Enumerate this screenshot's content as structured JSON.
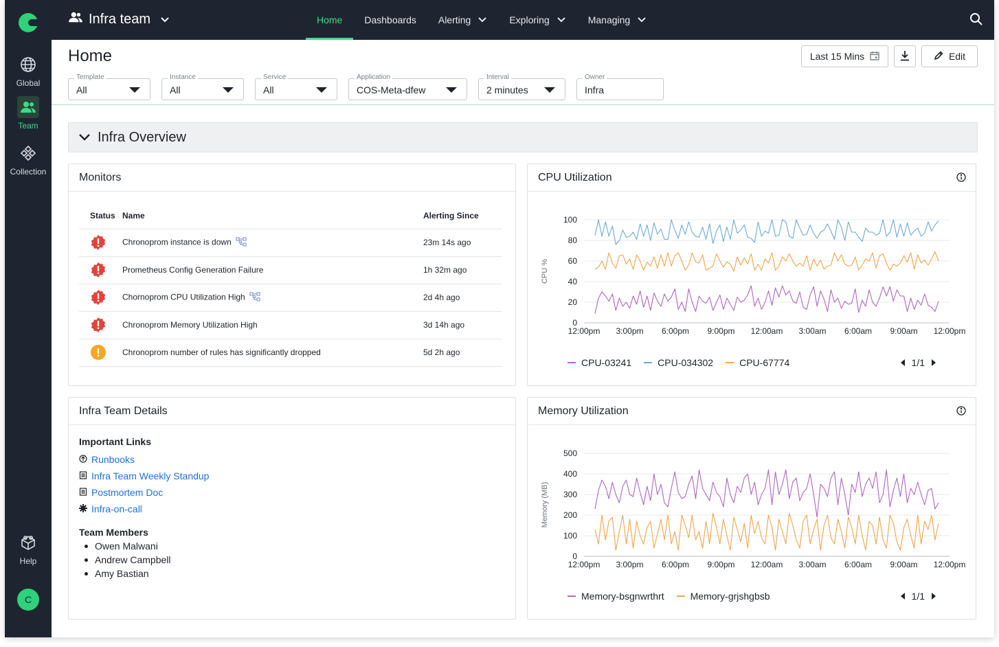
{
  "app": {
    "team_name": "Infra team",
    "nav_tabs": [
      {
        "label": "Home",
        "active": true,
        "dropdown": false
      },
      {
        "label": "Dashboards",
        "active": false,
        "dropdown": false
      },
      {
        "label": "Alerting",
        "active": false,
        "dropdown": true
      },
      {
        "label": "Exploring",
        "active": false,
        "dropdown": true
      },
      {
        "label": "Managing",
        "active": false,
        "dropdown": true
      }
    ],
    "brand_color": "#3ddc84"
  },
  "sidebar": {
    "items": [
      {
        "label": "Global",
        "icon": "globe-icon",
        "active": false
      },
      {
        "label": "Team",
        "icon": "team-icon",
        "active": true
      },
      {
        "label": "Collection",
        "icon": "collection-icon",
        "active": false
      }
    ],
    "help_label": "Help",
    "avatar_initial": "C"
  },
  "header": {
    "title": "Home",
    "time_range": "Last 15 Mins",
    "edit_label": "Edit"
  },
  "filters": [
    {
      "label": "Template",
      "value": "All",
      "dropdown": true
    },
    {
      "label": "Instance",
      "value": "All",
      "dropdown": true
    },
    {
      "label": "Service",
      "value": "All",
      "dropdown": true
    },
    {
      "label": "Application",
      "value": "COS-Meta-dfew",
      "dropdown": true
    },
    {
      "label": "Interval",
      "value": "2 minutes",
      "dropdown": true
    },
    {
      "label": "Owner",
      "value": "Infra",
      "dropdown": false
    }
  ],
  "section": {
    "title": "Infra Overview"
  },
  "monitors": {
    "title": "Monitors",
    "columns": [
      "Status",
      "Name",
      "Alerting Since"
    ],
    "rows": [
      {
        "severity": "critical",
        "name": "Chronoprom instance is down",
        "linked": true,
        "since": "23m 14s ago"
      },
      {
        "severity": "critical",
        "name": "Prometheus Config Generation Failure",
        "linked": false,
        "since": "1h 32m ago"
      },
      {
        "severity": "critical",
        "name": "Chornoprom CPU Utilization High",
        "linked": true,
        "since": "2d 4h ago"
      },
      {
        "severity": "critical",
        "name": "Chronoprom Memory Utilization High",
        "linked": false,
        "since": "3d 14h ago"
      },
      {
        "severity": "warning",
        "name": "Chronoprom number of rules has significantly dropped",
        "linked": false,
        "since": "5d 2h ago"
      }
    ],
    "colors": {
      "critical": "#e5423b",
      "warning": "#f6a623"
    }
  },
  "details": {
    "title": "Infra Team Details",
    "links_heading": "Important Links",
    "links": [
      {
        "label": "Runbooks",
        "icon": "runbook-icon"
      },
      {
        "label": "Infra Team Weekly Standup",
        "icon": "document-icon"
      },
      {
        "label": "Postmortem Doc",
        "icon": "document-icon"
      },
      {
        "label": "Infra-on-call",
        "icon": "oncall-icon"
      }
    ],
    "members_heading": "Team Members",
    "members": [
      "Owen Malwani",
      "Andrew Campbell",
      "Amy Bastian"
    ]
  },
  "chart_data": [
    {
      "type": "line",
      "title": "CPU Utilization",
      "ylabel": "CPU %",
      "ylim": [
        0,
        100
      ],
      "yticks": [
        0,
        20,
        40,
        60,
        80,
        100
      ],
      "xticks": [
        "12:00pm",
        "3:00pm",
        "6:00pm",
        "9:00pm",
        "12:00am",
        "3:00am",
        "6:00am",
        "9:00am",
        "12:00pm"
      ],
      "grid": true,
      "pager": "1/1",
      "series": [
        {
          "name": "CPU-03241",
          "color": "#b065c2",
          "values": [
            9,
            24,
            30,
            26,
            21,
            28,
            12,
            24,
            16,
            20,
            14,
            26,
            18,
            31,
            15,
            26,
            12,
            29,
            21,
            16,
            28,
            21,
            25,
            33,
            13,
            20,
            11,
            33,
            20,
            11,
            26,
            21,
            19,
            25,
            12,
            20,
            27,
            13,
            24,
            18,
            12,
            25,
            20,
            22,
            27,
            36,
            16,
            24,
            13,
            20,
            31,
            17,
            34,
            25,
            36,
            27,
            31,
            21,
            19,
            30,
            15,
            13,
            27,
            35,
            16,
            31,
            23,
            11,
            32,
            20,
            24,
            14,
            21,
            18,
            19,
            33,
            10,
            22,
            16,
            32,
            20,
            16,
            24,
            35,
            26,
            35,
            21,
            32,
            26,
            26,
            11,
            24,
            13,
            22,
            17,
            28,
            17,
            15,
            11,
            21
          ]
        },
        {
          "name": "CPU-034302",
          "color": "#6ea8d7",
          "values": [
            85,
            100,
            84,
            98,
            84,
            94,
            76,
            80,
            90,
            83,
            84,
            88,
            81,
            96,
            84,
            95,
            80,
            97,
            86,
            91,
            81,
            81,
            100,
            90,
            82,
            95,
            86,
            98,
            88,
            84,
            83,
            93,
            81,
            96,
            77,
            89,
            95,
            79,
            93,
            81,
            100,
            87,
            90,
            95,
            83,
            82,
            78,
            98,
            84,
            89,
            87,
            100,
            84,
            85,
            100,
            98,
            84,
            82,
            100,
            92,
            85,
            86,
            95,
            87,
            82,
            88,
            90,
            96,
            89,
            81,
            100,
            93,
            80,
            98,
            88,
            88,
            83,
            79,
            92,
            88,
            88,
            85,
            87,
            100,
            84,
            88,
            100,
            83,
            96,
            84,
            97,
            85,
            89,
            92,
            84,
            87,
            98,
            89,
            95,
            99
          ]
        },
        {
          "name": "CPU-67774",
          "color": "#f1a44a",
          "values": [
            52,
            54,
            60,
            52,
            68,
            58,
            53,
            65,
            66,
            57,
            62,
            52,
            66,
            60,
            51,
            59,
            55,
            64,
            53,
            66,
            55,
            68,
            55,
            65,
            68,
            60,
            51,
            56,
            68,
            59,
            58,
            66,
            51,
            53,
            55,
            67,
            60,
            54,
            59,
            57,
            50,
            64,
            56,
            63,
            57,
            67,
            51,
            57,
            51,
            62,
            58,
            68,
            51,
            55,
            64,
            60,
            67,
            60,
            55,
            58,
            55,
            65,
            51,
            62,
            55,
            61,
            52,
            55,
            56,
            68,
            60,
            66,
            57,
            55,
            56,
            64,
            51,
            56,
            62,
            60,
            68,
            53,
            65,
            67,
            58,
            51,
            57,
            55,
            58,
            65,
            59,
            68,
            52,
            66,
            58,
            61,
            56,
            62,
            69,
            60
          ]
        }
      ]
    },
    {
      "type": "line",
      "title": "Memory Utilization",
      "ylabel": "Memory (MB)",
      "ylim": [
        0,
        500
      ],
      "yticks": [
        0,
        100,
        200,
        300,
        400,
        500
      ],
      "xticks": [
        "12:00pm",
        "3:00pm",
        "6:00pm",
        "9:00pm",
        "12:00am",
        "3:00am",
        "6:00am",
        "9:00am",
        "12:00pm"
      ],
      "grid": true,
      "pager": "1/1",
      "series": [
        {
          "name": "Memory-bsgnwrthrt",
          "color": "#b065c2",
          "values": [
            230,
            320,
            370,
            340,
            280,
            360,
            300,
            260,
            340,
            370,
            300,
            290,
            380,
            310,
            250,
            340,
            270,
            400,
            300,
            350,
            260,
            240,
            330,
            410,
            310,
            280,
            290,
            350,
            390,
            280,
            420,
            330,
            300,
            270,
            360,
            310,
            290,
            240,
            380,
            300,
            260,
            340,
            310,
            380,
            400,
            300,
            360,
            250,
            300,
            330,
            420,
            250,
            410,
            300,
            350,
            420,
            280,
            360,
            380,
            270,
            310,
            330,
            400,
            300,
            190,
            350,
            330,
            290,
            380,
            410,
            250,
            380,
            300,
            200,
            350,
            310,
            410,
            290,
            350,
            380,
            330,
            410,
            260,
            300,
            420,
            240,
            320,
            380,
            290,
            400,
            260,
            330,
            300,
            360,
            300,
            250,
            320,
            330,
            230,
            260
          ]
        },
        {
          "name": "Memory-grjshgbsb",
          "color": "#f1a44a",
          "values": [
            130,
            60,
            200,
            80,
            170,
            190,
            30,
            120,
            200,
            60,
            180,
            40,
            170,
            100,
            60,
            140,
            170,
            40,
            110,
            180,
            80,
            200,
            60,
            120,
            30,
            200,
            150,
            90,
            200,
            80,
            120,
            40,
            170,
            60,
            210,
            140,
            60,
            180,
            100,
            30,
            190,
            130,
            70,
            160,
            40,
            200,
            110,
            170,
            90,
            60,
            200,
            140,
            30,
            180,
            120,
            60,
            210,
            150,
            80,
            40,
            170,
            200,
            60,
            130,
            180,
            30,
            150,
            200,
            90,
            60,
            180,
            120,
            40,
            190,
            140,
            60,
            200,
            100,
            30,
            170,
            150,
            60,
            190,
            80,
            40,
            200,
            160,
            70,
            30,
            140,
            180,
            100,
            40,
            200,
            60,
            170,
            130,
            200,
            80,
            160
          ]
        }
      ]
    }
  ]
}
